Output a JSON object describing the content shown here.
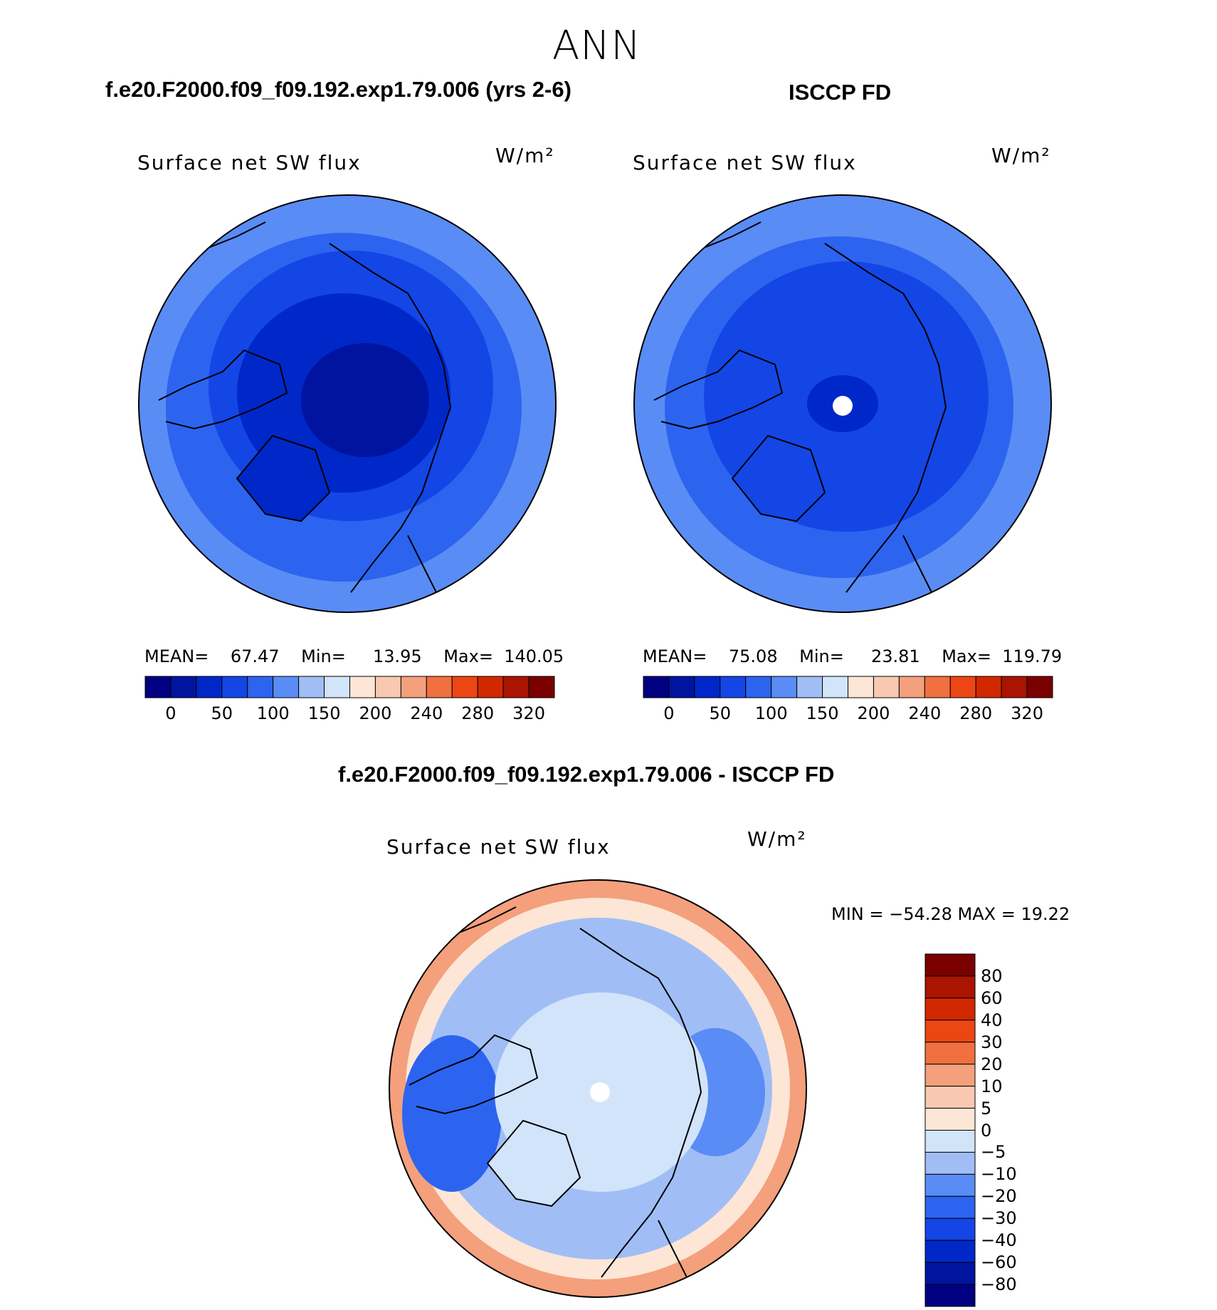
{
  "page": {
    "season": "ANN"
  },
  "panels": [
    {
      "case_title": "f.e20.F2000.f09_f09.192.exp1.79.006 (yrs 2-6)",
      "variable": "Surface net SW flux",
      "units": "W/m²",
      "stats": {
        "mean_label": "MEAN=",
        "mean": "67.47",
        "min_label": "Min=",
        "min": "13.95",
        "max_label": "Max=",
        "max": "140.05"
      }
    },
    {
      "case_title": "ISCCP FD",
      "variable": "Surface net SW flux",
      "units": "W/m²",
      "stats": {
        "mean_label": "MEAN=",
        "mean": "75.08",
        "min_label": "Min=",
        "min": "23.81",
        "max_label": "Max=",
        "max": "119.79"
      }
    },
    {
      "case_title": "f.e20.F2000.f09_f09.192.exp1.79.006 - ISCCP FD",
      "variable": "Surface net SW flux",
      "units": "W/m²",
      "stats": {
        "text": "MIN = −54.28 MAX =   19.22"
      }
    }
  ],
  "colorbar_main": {
    "colors": [
      "#000080",
      "#0014a0",
      "#0028c8",
      "#1446e6",
      "#2c64f0",
      "#5a8cf5",
      "#a0bef5",
      "#d2e4fa",
      "#fde6d6",
      "#f9c8b0",
      "#f4a07c",
      "#f07040",
      "#ec4614",
      "#d22800",
      "#aa1400",
      "#7a0000"
    ],
    "labels": [
      "0",
      "50",
      "100",
      "150",
      "200",
      "240",
      "280",
      "320"
    ]
  },
  "colorbar_diff": {
    "colors": [
      "#000080",
      "#0014a0",
      "#0028c8",
      "#1446e6",
      "#2c64f0",
      "#5a8cf5",
      "#a0bef5",
      "#d2e4fa",
      "#fde6d6",
      "#f9c8b0",
      "#f4a07c",
      "#f07040",
      "#ec4614",
      "#d22800",
      "#aa1400",
      "#7a0000"
    ],
    "labels": [
      "80",
      "60",
      "40",
      "30",
      "20",
      "10",
      "5",
      "0",
      "−5",
      "−10",
      "−20",
      "−30",
      "−40",
      "−60",
      "−80"
    ]
  },
  "map_fills": {
    "model": {
      "outer": "#5a8cf5",
      "ring2": "#2c64f0",
      "ring3": "#1446e6",
      "ring4": "#0028c8",
      "core": "#0014a0"
    },
    "obs": {
      "outer": "#5a8cf5",
      "ring2": "#2c64f0",
      "ring3": "#1446e6",
      "core": "#0028c8",
      "pole": "#ffffff"
    },
    "diff": {
      "outer": "#f4a07c",
      "ring1": "#fde6d6",
      "ring2": "#a0bef5",
      "ring3": "#d2e4fa",
      "blob1": "#2c64f0",
      "blob2": "#5a8cf5",
      "pole": "#ffffff"
    }
  }
}
